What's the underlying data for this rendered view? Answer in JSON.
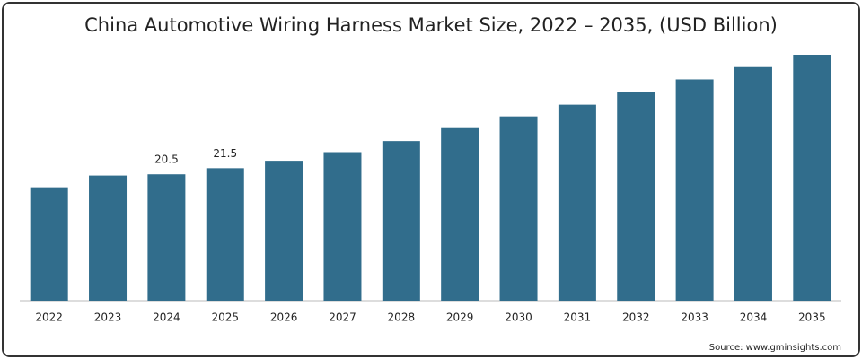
{
  "chart_data": {
    "type": "bar",
    "title": "China Automotive Wiring Harness Market Size, 2022 – 2035, (USD Billion)",
    "categories": [
      "2022",
      "2023",
      "2024",
      "2025",
      "2026",
      "2027",
      "2028",
      "2029",
      "2030",
      "2031",
      "2032",
      "2033",
      "2034",
      "2035"
    ],
    "values": [
      18.4,
      20.3,
      20.5,
      21.5,
      22.7,
      24.1,
      25.9,
      28.0,
      29.9,
      31.8,
      33.8,
      35.9,
      37.9,
      39.9
    ],
    "value_labels": [
      null,
      null,
      "20.5",
      "21.5",
      null,
      null,
      null,
      null,
      null,
      null,
      null,
      null,
      null,
      null
    ],
    "color": "#316d8c",
    "source": "Source: www.gminsights.com"
  }
}
